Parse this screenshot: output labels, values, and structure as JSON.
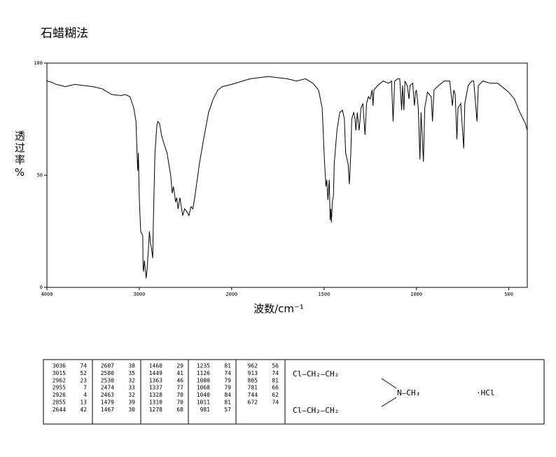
{
  "chart_data": {
    "type": "line",
    "title": "石蜡糊法",
    "xlabel": "波数/cm⁻¹",
    "ylabel": "透过率%",
    "xlim": [
      4000,
      400
    ],
    "xticks": [
      4000,
      3000,
      2000,
      1500,
      1000,
      500
    ],
    "x_scale_break": 2000,
    "ylim": [
      0,
      100
    ],
    "yticks": [
      0,
      50,
      100
    ],
    "color": "#000000",
    "x": [
      4000,
      3950,
      3900,
      3800,
      3700,
      3600,
      3500,
      3400,
      3300,
      3200,
      3150,
      3100,
      3060,
      3036,
      3020,
      3015,
      3010,
      3000,
      2985,
      2962,
      2960,
      2955,
      2945,
      2940,
      2930,
      2926,
      2915,
      2900,
      2890,
      2880,
      2870,
      2855,
      2845,
      2830,
      2810,
      2800,
      2780,
      2760,
      2740,
      2700,
      2680,
      2660,
      2644,
      2630,
      2620,
      2607,
      2595,
      2580,
      2560,
      2545,
      2530,
      2510,
      2490,
      2474,
      2463,
      2440,
      2420,
      2400,
      2350,
      2300,
      2250,
      2200,
      2150,
      2100,
      2050,
      2000,
      1900,
      1800,
      1700,
      1650,
      1600,
      1560,
      1530,
      1510,
      1500,
      1490,
      1485,
      1479,
      1472,
      1467,
      1463,
      1460,
      1455,
      1449,
      1445,
      1430,
      1415,
      1400,
      1390,
      1383,
      1370,
      1363,
      1355,
      1350,
      1340,
      1337,
      1332,
      1328,
      1320,
      1310,
      1300,
      1290,
      1278,
      1270,
      1260,
      1250,
      1240,
      1235,
      1230,
      1210,
      1180,
      1150,
      1135,
      1126,
      1118,
      1100,
      1090,
      1080,
      1075,
      1068,
      1062,
      1050,
      1040,
      1035,
      1020,
      1011,
      1005,
      1000,
      990,
      981,
      975,
      962,
      955,
      940,
      920,
      913,
      905,
      880,
      850,
      820,
      805,
      798,
      790,
      781,
      775,
      760,
      744,
      738,
      720,
      700,
      690,
      672,
      665,
      640,
      600,
      560,
      530,
      500,
      470,
      440,
      410,
      400
    ],
    "values": [
      92,
      91.5,
      90.5,
      89.5,
      90.5,
      90,
      89.5,
      88.5,
      86,
      85.5,
      86,
      85,
      80,
      74,
      55,
      52,
      60,
      40,
      25,
      23,
      10,
      7,
      12,
      10,
      6,
      4,
      8,
      18,
      25,
      20,
      18,
      13,
      35,
      60,
      72,
      74,
      73,
      68,
      65,
      60,
      55,
      50,
      42,
      45,
      42,
      38,
      40,
      35,
      40,
      36,
      32,
      35,
      34,
      33,
      32,
      36,
      35,
      40,
      55,
      67,
      78,
      84,
      88,
      89.5,
      90,
      90.5,
      93,
      94,
      93,
      92,
      93,
      91,
      88,
      80,
      60,
      45,
      48,
      39,
      48,
      30,
      35,
      29,
      38,
      41,
      55,
      70,
      78,
      79,
      75,
      60,
      55,
      46,
      60,
      75,
      78,
      77,
      75,
      70,
      78,
      70,
      80,
      82,
      68,
      82,
      85,
      84,
      88,
      81,
      88,
      90,
      92,
      91,
      92,
      74,
      92,
      93,
      93,
      79,
      90,
      79,
      92,
      90,
      84,
      90,
      91,
      81,
      87,
      88,
      80,
      57,
      78,
      56,
      80,
      87,
      85,
      74,
      88,
      90,
      92,
      92,
      81,
      88,
      86,
      66,
      80,
      82,
      62,
      82,
      90,
      92,
      92,
      74,
      90,
      92,
      91,
      91,
      89,
      87,
      84,
      78,
      73,
      70
    ]
  },
  "peak_table": [
    [
      [
        "3036",
        "74"
      ],
      [
        "3015",
        "52"
      ],
      [
        "2962",
        "23"
      ],
      [
        "2955",
        "7"
      ],
      [
        "2926",
        "4"
      ],
      [
        "2855",
        "13"
      ],
      [
        "2644",
        "42"
      ]
    ],
    [
      [
        "2607",
        "38"
      ],
      [
        "2580",
        "35"
      ],
      [
        "2530",
        "32"
      ],
      [
        "2474",
        "33"
      ],
      [
        "2463",
        "32"
      ],
      [
        "1479",
        "39"
      ],
      [
        "1467",
        "30"
      ]
    ],
    [
      [
        "1460",
        "29"
      ],
      [
        "1449",
        "41"
      ],
      [
        "1363",
        "46"
      ],
      [
        "1337",
        "77"
      ],
      [
        "1328",
        "70"
      ],
      [
        "1310",
        "70"
      ],
      [
        "1278",
        "68"
      ]
    ],
    [
      [
        "1235",
        "81"
      ],
      [
        "1126",
        "74"
      ],
      [
        "1080",
        "79"
      ],
      [
        "1068",
        "79"
      ],
      [
        "1040",
        "84"
      ],
      [
        "1011",
        "81"
      ],
      [
        "981",
        "57"
      ]
    ],
    [
      [
        "962",
        "56"
      ],
      [
        "913",
        "74"
      ],
      [
        "805",
        "81"
      ],
      [
        "781",
        "66"
      ],
      [
        "744",
        "62"
      ],
      [
        "672",
        "74"
      ]
    ]
  ],
  "structure": {
    "chain_top": "Cl—CH₂—CH₂",
    "chain_bottom": "Cl—CH₂—CH₂",
    "amine": "N—CH₃",
    "salt": "·HCl"
  }
}
